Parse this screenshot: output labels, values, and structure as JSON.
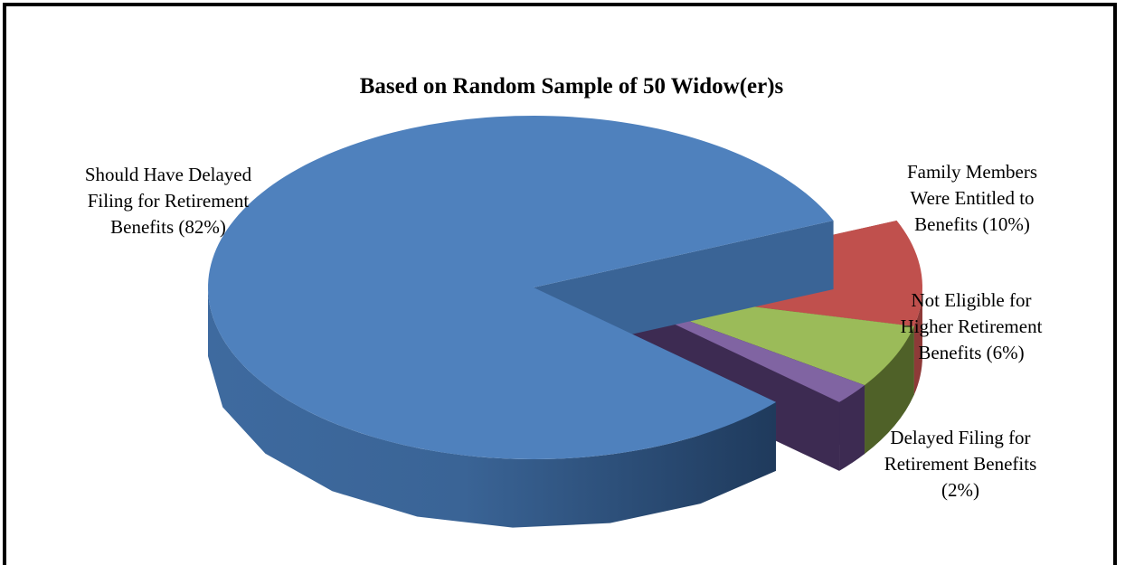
{
  "chart_data": {
    "type": "pie",
    "style": "3d-exploded",
    "title": "Based on Random  Sample of 50 Widow(er)s",
    "slices": [
      {
        "name": "Should Have Delayed Filing for Retirement Benefits",
        "value": 82,
        "label_lines": [
          "Should Have  Delayed",
          "Filing for Retirement",
          "Benefits (82%)"
        ],
        "color": "#4F81BD",
        "side_color": "#3A6496",
        "exploded": false
      },
      {
        "name": "Family Members Were Entitled to Benefits",
        "value": 10,
        "label_lines": [
          "Family Members",
          "Were Entitled to",
          "Benefits (10%)"
        ],
        "color": "#C0504D",
        "side_color": "#8E3A38",
        "exploded": true
      },
      {
        "name": "Not Eligible for Higher Retirement Benefits",
        "value": 6,
        "label_lines": [
          "Not Eligible for",
          "Higher Retirement",
          "Benefits (6%)"
        ],
        "color": "#9BBB59",
        "side_color": "#4F6128",
        "exploded": true
      },
      {
        "name": "Delayed Filing for Retirement Benefits",
        "value": 2,
        "label_lines": [
          "Delayed Filing for",
          "Retirement Benefits",
          "(2%)"
        ],
        "color": "#8064A2",
        "side_color": "#3D2B52",
        "exploded": true
      }
    ],
    "legend": "none"
  }
}
